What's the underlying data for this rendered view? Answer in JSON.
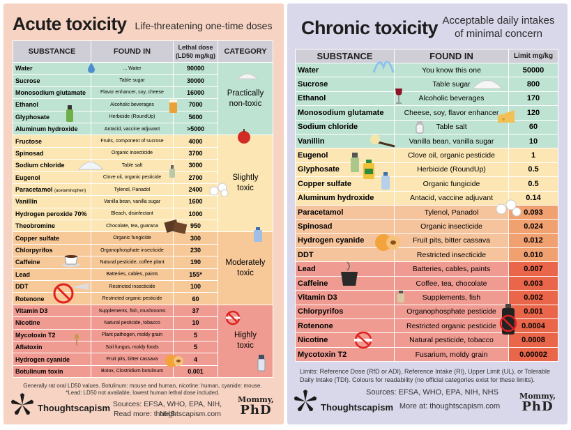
{
  "acute": {
    "title": "Acute toxicity",
    "subtitle": "Life-threatening one-time doses",
    "headers": {
      "substance": "SUBSTANCE",
      "found_in": "FOUND IN",
      "lethal_dose_1": "Lethal dose",
      "lethal_dose_2": "(LD50 mg/kg)",
      "category": "CATEGORY"
    },
    "rows": [
      {
        "substance": "Water",
        "found_in": "... Water",
        "dose": "90000"
      },
      {
        "substance": "Sucrose",
        "found_in": "Table sugar",
        "dose": "30000"
      },
      {
        "substance": "Monosodium glutamate",
        "found_in": "Flavor enhancer, soy, cheese",
        "dose": "16000"
      },
      {
        "substance": "Ethanol",
        "found_in": "Alcoholic beverages",
        "dose": "7000"
      },
      {
        "substance": "Glyphosate",
        "found_in": "Herbicide (RoundUp)",
        "dose": "5600"
      },
      {
        "substance": "Aluminum hydroxide",
        "found_in": "Antacid, vaccine adjuvant",
        "dose": ">5000"
      },
      {
        "substance": "Fructose",
        "found_in": "Fruits, component of sucrose",
        "dose": "4000"
      },
      {
        "substance": "Spinosad",
        "found_in": "Organic insecticide",
        "dose": "3700"
      },
      {
        "substance": "Sodium chloride",
        "found_in": "Table salt",
        "dose": "3000"
      },
      {
        "substance": "Eugenol",
        "found_in": "Clove oil, organic pesticide",
        "dose": "2700"
      },
      {
        "substance": "Paracetamol",
        "substance_note": "(acetaminophen)",
        "found_in": "Tylenol, Panadol",
        "dose": "2400"
      },
      {
        "substance": "Vanillin",
        "found_in": "Vanilla bean, vanilla sugar",
        "dose": "1600"
      },
      {
        "substance": "Hydrogen peroxide 70%",
        "found_in": "Bleach, disinfectant",
        "dose": "1000"
      },
      {
        "substance": "Theobromine",
        "found_in": "Chocolate, tea, guarana",
        "dose": "950"
      },
      {
        "substance": "Copper sulfate",
        "found_in": "Organic fungicide",
        "dose": "300"
      },
      {
        "substance": "Chlorpyrifos",
        "found_in": "Organophosphate insecticide",
        "dose": "230"
      },
      {
        "substance": "Caffeine",
        "found_in": "Natural pesticide, coffee plant",
        "dose": "190"
      },
      {
        "substance": "Lead",
        "found_in": "Batteries, cables, paints",
        "dose": "155*"
      },
      {
        "substance": "DDT",
        "found_in": "Restricted insecticide",
        "dose": "100"
      },
      {
        "substance": "Rotenone",
        "found_in": "Restricted organic pesticide",
        "dose": "60"
      },
      {
        "substance": "Vitamin D3",
        "found_in": "Supplements, fish, mushrooms",
        "dose": "37"
      },
      {
        "substance": "Nicotine",
        "found_in": "Natural pesticide, tobacco",
        "dose": "10"
      },
      {
        "substance": "Mycotoxin T2",
        "found_in": "Plant pathogen, moldy grain",
        "dose": "5"
      },
      {
        "substance": "Aflatoxin",
        "found_in": "Soil fungus, moldy foods",
        "dose": "5"
      },
      {
        "substance": "Hydrogen cyanide",
        "found_in": "Fruit pits, bitter cassava",
        "dose": "4"
      },
      {
        "substance": "Botulinum toxin",
        "found_in": "Botox, Clostridium botulinum",
        "dose": "0.001"
      }
    ],
    "categories": [
      {
        "line1": "Practically",
        "line2": "non-toxic"
      },
      {
        "line1": "Slightly",
        "line2": "toxic"
      },
      {
        "line1": "Moderately",
        "line2": "toxic"
      },
      {
        "line1": "Highly",
        "line2": "toxic"
      }
    ],
    "footnote_1": "Generally rat oral LD50 values. Botulinum: mouse and human, nicotine: human, cyanide: mouse.",
    "footnote_2": "*Lead: LD50 not available, lowest human lethal dose included.",
    "brand": "Thoughtscapism",
    "sources": "Sources: EFSA, WHO, EPA, NIH, NHS",
    "read_more": "Read more: thoughtscapism.com",
    "mommy_1": "Mommy,",
    "mommy_2": "PhD"
  },
  "chronic": {
    "title": "Chronic toxicity",
    "subtitle_1": "Acceptable daily intakes",
    "subtitle_2": "of minimal concern",
    "headers": {
      "substance": "SUBSTANCE",
      "found_in": "FOUND IN",
      "limit": "Limit mg/kg"
    },
    "rows": [
      {
        "substance": "Water",
        "found_in": "You know this one",
        "limit": "50000"
      },
      {
        "substance": "Sucrose",
        "found_in": "Table sugar",
        "limit": "800"
      },
      {
        "substance": "Ethanol",
        "found_in": "Alcoholic beverages",
        "limit": "170"
      },
      {
        "substance": "Monosodium glutamate",
        "found_in": "Cheese, soy, flavor enhancer",
        "limit": "120"
      },
      {
        "substance": "Sodium chloride",
        "found_in": "Table salt",
        "limit": "60"
      },
      {
        "substance": "Vanillin",
        "found_in": "Vanilla bean, vanilla sugar",
        "limit": "10"
      },
      {
        "substance": "Eugenol",
        "found_in": "Clove oil, organic pesticide",
        "limit": "1"
      },
      {
        "substance": "Glyphosate",
        "found_in": "Herbicide (RoundUp)",
        "limit": "0.5"
      },
      {
        "substance": "Copper sulfate",
        "found_in": "Organic fungicide",
        "limit": "0.5"
      },
      {
        "substance": "Aluminum hydroxide",
        "found_in": "Antacid, vaccine adjuvant",
        "limit": "0.14"
      },
      {
        "substance": "Paracetamol",
        "found_in": "Tylenol, Panadol",
        "limit": "0.093"
      },
      {
        "substance": "Spinosad",
        "found_in": "Organic insecticide",
        "limit": "0.024"
      },
      {
        "substance": "Hydrogen cyanide",
        "found_in": "Fruit pits, bitter cassava",
        "limit": "0.012"
      },
      {
        "substance": "DDT",
        "found_in": "Restricted insecticide",
        "limit": "0.010"
      },
      {
        "substance": "Lead",
        "found_in": "Batteries, cables, paints",
        "limit": "0.007"
      },
      {
        "substance": "Caffeine",
        "found_in": "Coffee, tea, chocolate",
        "limit": "0.003"
      },
      {
        "substance": "Vitamin D3",
        "found_in": "Supplements, fish",
        "limit": "0.002"
      },
      {
        "substance": "Chlorpyrifos",
        "found_in": "Organophosphate pesticide",
        "limit": "0.001"
      },
      {
        "substance": "Rotenone",
        "found_in": "Restricted organic pesticide",
        "limit": "0.0004"
      },
      {
        "substance": "Nicotine",
        "found_in": "Natural pesticide, tobacco",
        "limit": "0.0008"
      },
      {
        "substance": "Mycotoxin T2",
        "found_in": "Fusarium, moldy grain",
        "limit": "0.00002"
      }
    ],
    "limits_note_1": "Limits: Reference Dose (RfD or ADI), Reference Intake (RI), Upper Limit (UL), or Tolerable",
    "limits_note_2": "Daily Intake (TDI). Colours for readability (no official categories exist for these limits).",
    "sources": "Sources: EFSA, WHO, EPA, NIH, NHS",
    "brand": "Thoughtscapism",
    "more_at": "More at: thoughtscapism.com",
    "mommy_1": "Mommy,",
    "mommy_2": "PhD"
  },
  "colors": {
    "left_bg": "#f6d3c2",
    "right_bg": "#d9d7ea",
    "green": "#bfe3d3",
    "yellow": "#fbe6b4",
    "orange": "#f7c898",
    "red": "#ef9b91"
  }
}
